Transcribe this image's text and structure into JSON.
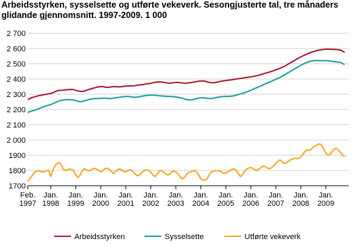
{
  "chart_data": {
    "type": "line",
    "title": "Arbeidsstyrken, sysselsette og utførte vekeverk. Sesongjusterte tal, tre månaders glidande gjennomsnitt. 1997-2009. 1 000",
    "categories": [
      "Feb. 1997",
      null,
      null,
      null,
      null,
      null,
      null,
      null,
      null,
      null,
      null,
      "Jan. 1998",
      null,
      null,
      null,
      null,
      null,
      null,
      null,
      null,
      null,
      null,
      null,
      "Jan. 1999",
      null,
      null,
      null,
      null,
      null,
      null,
      null,
      null,
      null,
      null,
      null,
      "Jan. 2000",
      null,
      null,
      null,
      null,
      null,
      null,
      null,
      null,
      null,
      null,
      null,
      "Jan. 2001",
      null,
      null,
      null,
      null,
      null,
      null,
      null,
      null,
      null,
      null,
      null,
      "Jan. 2002",
      null,
      null,
      null,
      null,
      null,
      null,
      null,
      null,
      null,
      null,
      null,
      "Jan. 2003",
      null,
      null,
      null,
      null,
      null,
      null,
      null,
      null,
      null,
      null,
      null,
      "Jan. 2004",
      null,
      null,
      null,
      null,
      null,
      null,
      null,
      null,
      null,
      null,
      null,
      "Jan. 2005",
      null,
      null,
      null,
      null,
      null,
      null,
      null,
      null,
      null,
      null,
      null,
      "Jan. 2006",
      null,
      null,
      null,
      null,
      null,
      null,
      null,
      null,
      null,
      null,
      null,
      "Jan. 2007",
      null,
      null,
      null,
      null,
      null,
      null,
      null,
      null,
      null,
      null,
      null,
      "Jan. 2008",
      null,
      null,
      null,
      null,
      null,
      null,
      null,
      null,
      null,
      null,
      null,
      "Jan. 2009",
      null,
      null,
      null,
      null,
      null,
      null,
      null,
      null,
      null
    ],
    "series": [
      {
        "name": "Arbeidsstyrken",
        "color": "#a6192e",
        "values": [
          2265,
          2272,
          2278,
          2282,
          2286,
          2290,
          2292,
          2295,
          2298,
          2300,
          2303,
          2305,
          2310,
          2316,
          2322,
          2325,
          2326,
          2327,
          2328,
          2330,
          2331,
          2332,
          2330,
          2326,
          2322,
          2320,
          2318,
          2320,
          2325,
          2330,
          2334,
          2338,
          2342,
          2346,
          2348,
          2350,
          2350,
          2347,
          2345,
          2346,
          2348,
          2350,
          2350,
          2349,
          2348,
          2350,
          2352,
          2353,
          2354,
          2355,
          2355,
          2356,
          2358,
          2360,
          2362,
          2363,
          2365,
          2368,
          2370,
          2372,
          2375,
          2378,
          2380,
          2382,
          2380,
          2378,
          2376,
          2374,
          2372,
          2374,
          2376,
          2377,
          2378,
          2376,
          2374,
          2372,
          2372,
          2374,
          2376,
          2378,
          2380,
          2383,
          2386,
          2387,
          2388,
          2386,
          2382,
          2378,
          2376,
          2375,
          2377,
          2380,
          2383,
          2386,
          2388,
          2390,
          2392,
          2393,
          2395,
          2398,
          2400,
          2402,
          2404,
          2406,
          2408,
          2410,
          2412,
          2414,
          2416,
          2419,
          2422,
          2426,
          2430,
          2434,
          2438,
          2442,
          2446,
          2450,
          2455,
          2460,
          2465,
          2470,
          2476,
          2482,
          2490,
          2498,
          2506,
          2514,
          2522,
          2530,
          2538,
          2545,
          2552,
          2558,
          2564,
          2570,
          2575,
          2580,
          2584,
          2587,
          2590,
          2592,
          2594,
          2595,
          2596,
          2595,
          2594,
          2594,
          2593,
          2592,
          2590,
          2583,
          2575
        ]
      },
      {
        "name": "Sysselsette",
        "color": "#1a9e9a",
        "values": [
          2180,
          2186,
          2190,
          2194,
          2198,
          2204,
          2210,
          2215,
          2220,
          2224,
          2228,
          2232,
          2238,
          2244,
          2250,
          2256,
          2260,
          2262,
          2264,
          2265,
          2265,
          2264,
          2262,
          2258,
          2254,
          2252,
          2252,
          2256,
          2260,
          2264,
          2268,
          2270,
          2272,
          2272,
          2272,
          2273,
          2274,
          2274,
          2273,
          2272,
          2272,
          2274,
          2276,
          2278,
          2280,
          2282,
          2284,
          2285,
          2285,
          2284,
          2282,
          2280,
          2280,
          2282,
          2285,
          2288,
          2290,
          2292,
          2293,
          2294,
          2294,
          2293,
          2292,
          2290,
          2289,
          2288,
          2287,
          2286,
          2286,
          2285,
          2284,
          2282,
          2280,
          2277,
          2274,
          2270,
          2266,
          2263,
          2262,
          2264,
          2268,
          2272,
          2275,
          2276,
          2277,
          2276,
          2274,
          2272,
          2272,
          2274,
          2277,
          2280,
          2282,
          2284,
          2285,
          2286,
          2286,
          2287,
          2288,
          2290,
          2294,
          2298,
          2302,
          2306,
          2310,
          2315,
          2320,
          2326,
          2332,
          2338,
          2344,
          2350,
          2356,
          2362,
          2368,
          2374,
          2380,
          2386,
          2392,
          2398,
          2404,
          2410,
          2418,
          2426,
          2434,
          2442,
          2450,
          2458,
          2466,
          2474,
          2482,
          2490,
          2497,
          2503,
          2509,
          2514,
          2518,
          2520,
          2521,
          2521,
          2520,
          2520,
          2520,
          2520,
          2519,
          2518,
          2516,
          2514,
          2512,
          2511,
          2510,
          2502,
          2494
        ]
      },
      {
        "name": "Utførte vekeverk",
        "color": "#f5a623",
        "values": [
          1730,
          1745,
          1765,
          1785,
          1795,
          1798,
          1795,
          1790,
          1792,
          1798,
          1800,
          1760,
          1800,
          1830,
          1845,
          1852,
          1840,
          1810,
          1800,
          1805,
          1810,
          1806,
          1800,
          1770,
          1755,
          1768,
          1795,
          1812,
          1805,
          1798,
          1800,
          1810,
          1815,
          1808,
          1800,
          1790,
          1800,
          1812,
          1815,
          1808,
          1795,
          1780,
          1790,
          1805,
          1810,
          1805,
          1795,
          1790,
          1798,
          1805,
          1800,
          1785,
          1770,
          1765,
          1775,
          1790,
          1800,
          1805,
          1800,
          1790,
          1770,
          1760,
          1775,
          1795,
          1800,
          1792,
          1780,
          1770,
          1775,
          1790,
          1795,
          1790,
          1780,
          1760,
          1745,
          1752,
          1770,
          1785,
          1790,
          1795,
          1800,
          1790,
          1770,
          1745,
          1738,
          1735,
          1745,
          1770,
          1790,
          1795,
          1798,
          1800,
          1795,
          1790,
          1780,
          1785,
          1790,
          1800,
          1808,
          1810,
          1800,
          1780,
          1760,
          1770,
          1795,
          1810,
          1815,
          1820,
          1812,
          1805,
          1800,
          1810,
          1820,
          1830,
          1825,
          1815,
          1812,
          1818,
          1830,
          1845,
          1860,
          1870,
          1858,
          1845,
          1850,
          1860,
          1870,
          1875,
          1880,
          1878,
          1880,
          1890,
          1905,
          1925,
          1935,
          1930,
          1940,
          1955,
          1960,
          1970,
          1975,
          1965,
          1940,
          1915,
          1900,
          1905,
          1925,
          1940,
          1945,
          1935,
          1920,
          1900,
          1890
        ]
      }
    ],
    "ylim": [
      1700,
      2700
    ],
    "yticks": [
      1700,
      1800,
      1900,
      {
        "value": 2000,
        "label": "2 000"
      },
      {
        "value": 2100,
        "label": "2 100"
      },
      {
        "value": 2200,
        "label": "2 200"
      },
      {
        "value": 2300,
        "label": "2 300"
      },
      {
        "value": 2400,
        "label": "2 400"
      },
      {
        "value": 2500,
        "label": "2 500"
      },
      {
        "value": 2600,
        "label": "2 600"
      },
      {
        "value": 2700,
        "label": "2 700"
      }
    ],
    "grid": true
  }
}
